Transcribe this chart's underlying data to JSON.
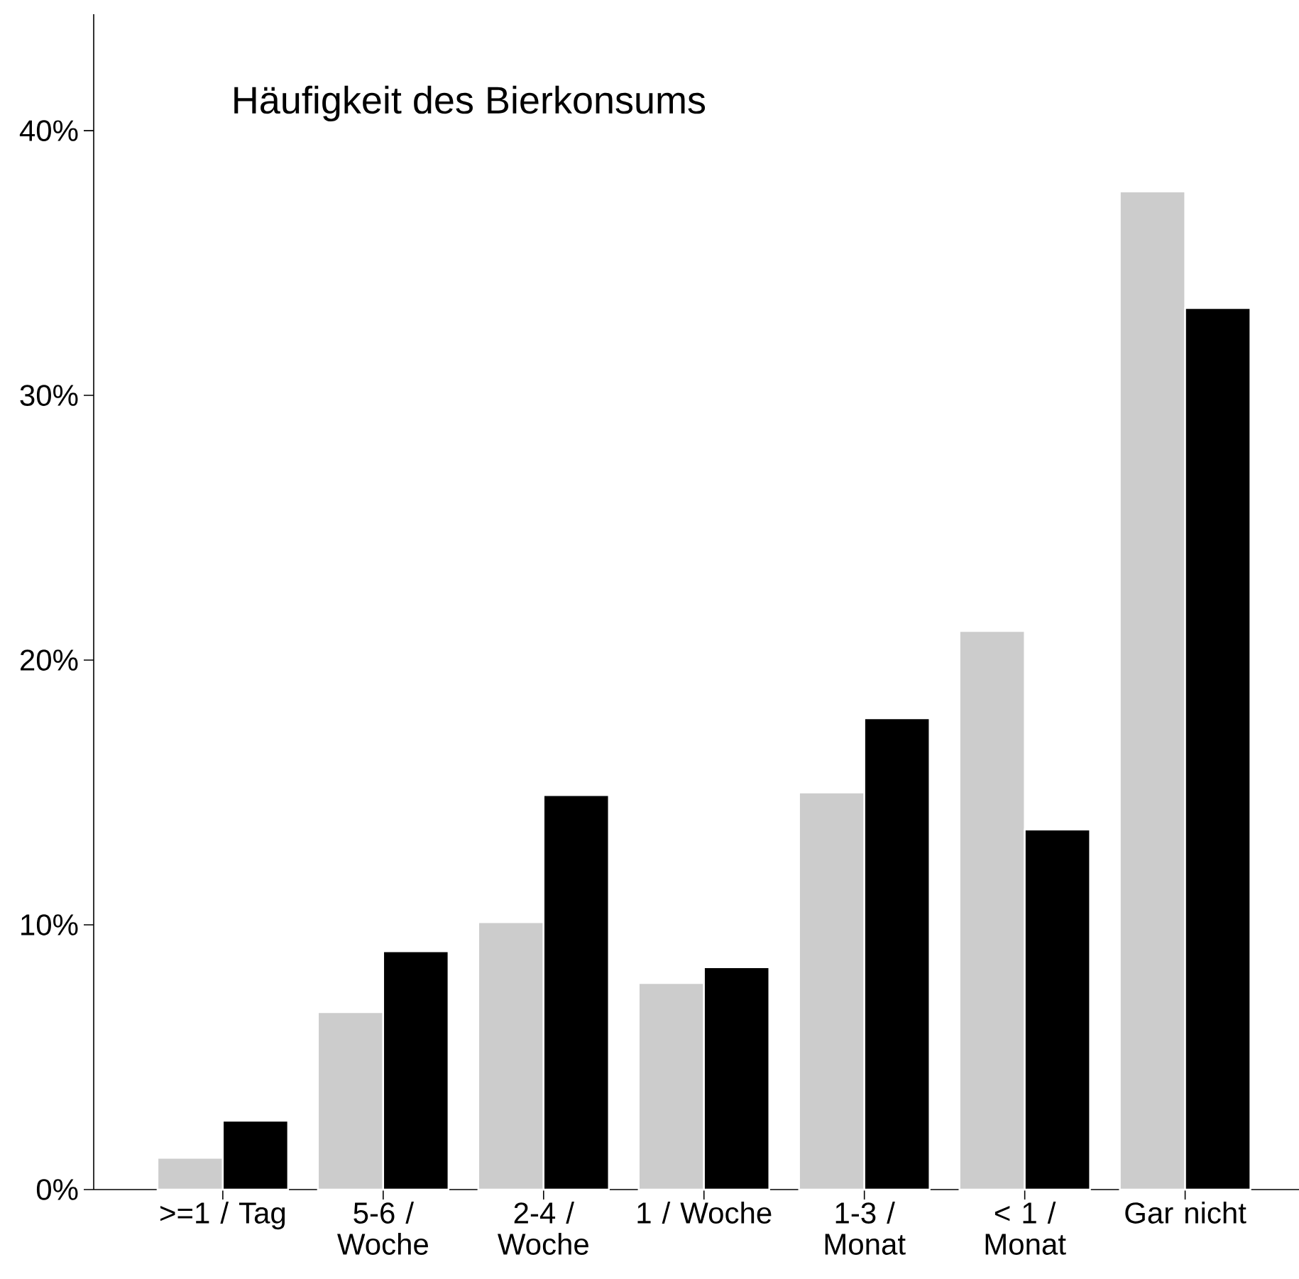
{
  "chart_data": {
    "type": "bar",
    "title": "Häufigkeit des Bierkonsums",
    "categories": [
      ">=1 / Tag",
      "5-6 / Woche",
      "2-4 / Woche",
      "1 / Woche",
      "1-3 / Monat",
      "< 1 / Monat",
      "Gar nicht"
    ],
    "series": [
      {
        "color": "#cccccc",
        "values": [
          1.2,
          6.7,
          10.1,
          7.8,
          15.0,
          21.1,
          37.7
        ]
      },
      {
        "color": "#000000",
        "values": [
          2.6,
          9.0,
          14.9,
          8.4,
          17.8,
          13.6,
          33.3
        ]
      }
    ],
    "ylim": [
      0,
      44.4
    ],
    "yticks": [
      {
        "value": 0,
        "label": "0%"
      },
      {
        "value": 10,
        "label": "10%"
      },
      {
        "value": 20,
        "label": "20%"
      },
      {
        "value": 30,
        "label": "30%"
      },
      {
        "value": 40,
        "label": "40%"
      }
    ]
  }
}
